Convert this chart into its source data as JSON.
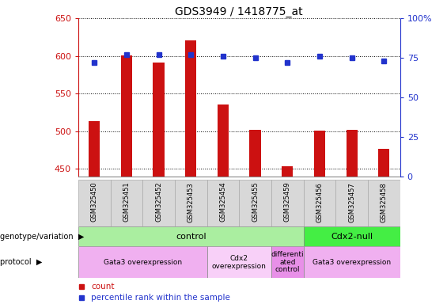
{
  "title": "GDS3949 / 1418775_at",
  "samples": [
    "GSM325450",
    "GSM325451",
    "GSM325452",
    "GSM325453",
    "GSM325454",
    "GSM325455",
    "GSM325459",
    "GSM325456",
    "GSM325457",
    "GSM325458"
  ],
  "counts": [
    513,
    601,
    591,
    621,
    535,
    502,
    453,
    501,
    502,
    477
  ],
  "percentile_ranks": [
    72,
    77,
    77,
    77,
    76,
    75,
    72,
    76,
    75,
    73
  ],
  "ylim_left": [
    440,
    650
  ],
  "ylim_right": [
    0,
    100
  ],
  "yticks_left": [
    450,
    500,
    550,
    600,
    650
  ],
  "yticks_right": [
    0,
    25,
    50,
    75,
    100
  ],
  "ytick_right_labels": [
    "0",
    "25",
    "50",
    "75",
    "100%"
  ],
  "bar_color": "#cc1111",
  "dot_color": "#2233cc",
  "bar_width": 0.35,
  "dot_size": 5,
  "genotype_groups": [
    {
      "label": "control",
      "start": 0,
      "end": 7,
      "color": "#aaeea0"
    },
    {
      "label": "Cdx2-null",
      "start": 7,
      "end": 10,
      "color": "#44ee44"
    }
  ],
  "protocol_groups": [
    {
      "label": "Gata3 overexpression",
      "start": 0,
      "end": 4,
      "color": "#f0b0f0"
    },
    {
      "label": "Cdx2\noverexpression",
      "start": 4,
      "end": 6,
      "color": "#f8d0f8"
    },
    {
      "label": "differenti\nated\ncontrol",
      "start": 6,
      "end": 7,
      "color": "#e890e8"
    },
    {
      "label": "Gata3 overexpression",
      "start": 7,
      "end": 10,
      "color": "#f0b0f0"
    }
  ],
  "left_label_color": "#cc1111",
  "right_label_color": "#2233cc",
  "grid_color": "black",
  "grid_linestyle": ":",
  "grid_linewidth": 0.7,
  "sample_cell_color": "#d8d8d8",
  "sample_cell_edge": "#aaaaaa",
  "legend_count_color": "#cc1111",
  "legend_pct_color": "#2233cc"
}
